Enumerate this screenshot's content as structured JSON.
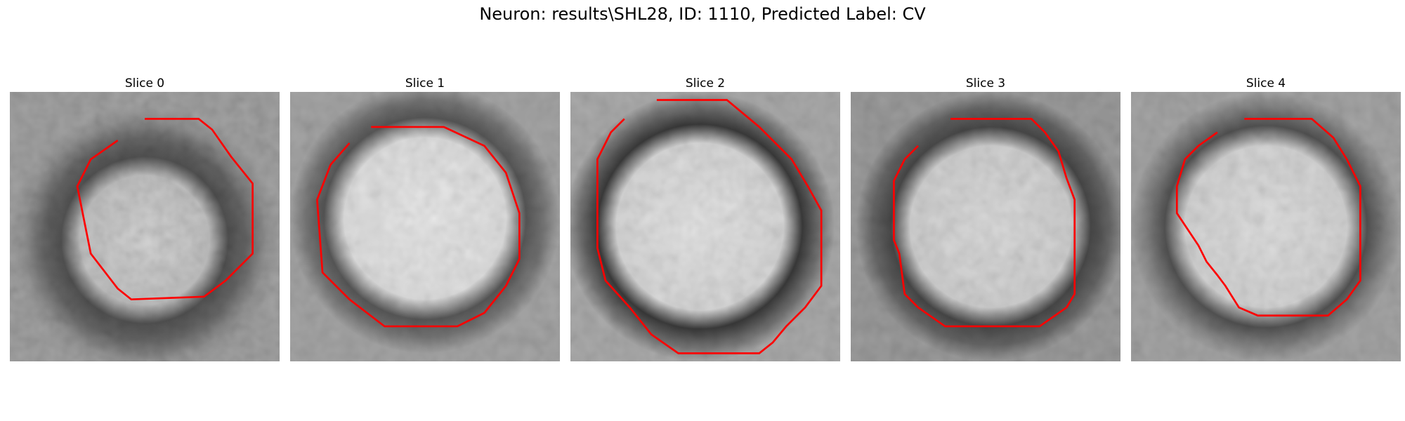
{
  "figure": {
    "title": "Neuron: results\\SHL28, ID: 1110, Predicted Label: CV"
  },
  "panels": [
    {
      "title": "Slice 0"
    },
    {
      "title": "Slice 1"
    },
    {
      "title": "Slice 2"
    },
    {
      "title": "Slice 3"
    },
    {
      "title": "Slice 4"
    }
  ],
  "colors": {
    "contour": "#ff0000",
    "background": "#ffffff"
  }
}
